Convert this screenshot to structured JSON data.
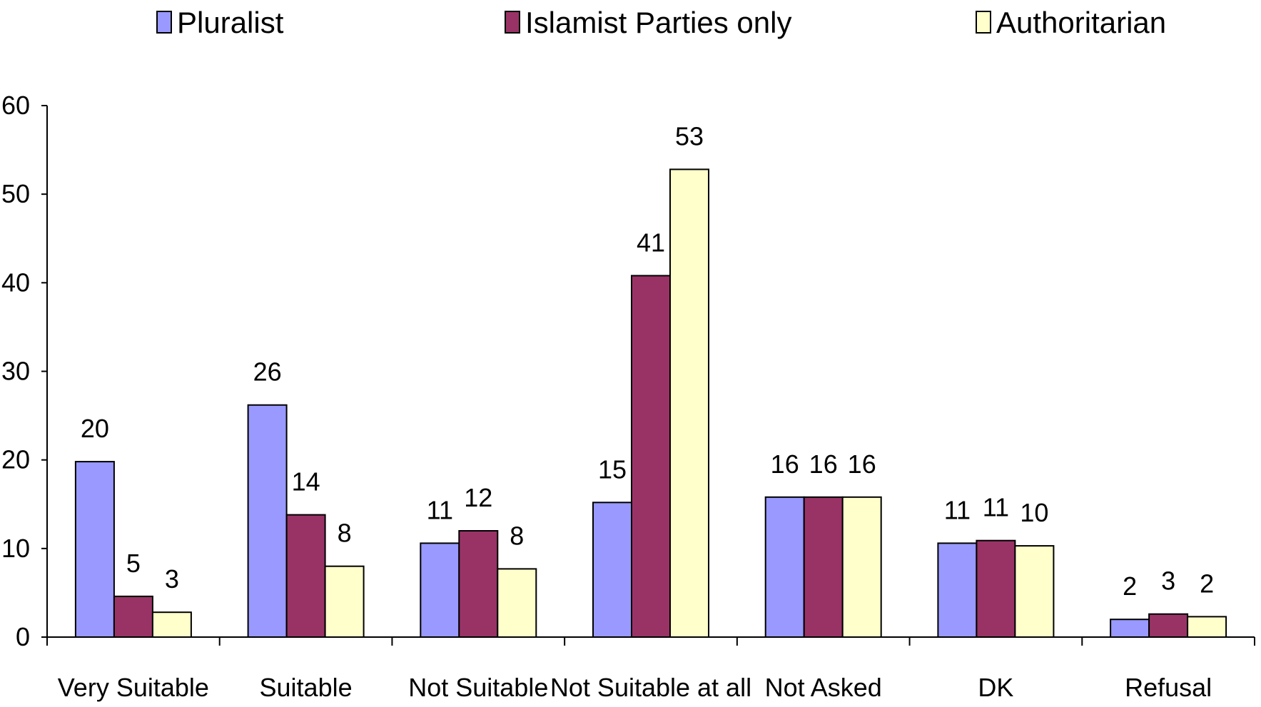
{
  "chart_data": {
    "type": "bar",
    "title": "",
    "xlabel": "",
    "ylabel": "",
    "categories": [
      "Very Suitable",
      "Suitable",
      "Not Suitable",
      "Not Suitable at all",
      "Not Asked",
      "DK",
      "Refusal"
    ],
    "series": [
      {
        "name": "Pluralist",
        "color": "#9999ff",
        "values": [
          19.8,
          26.2,
          10.6,
          15.2,
          15.8,
          10.6,
          2.0
        ],
        "labels": [
          "20",
          "26",
          "11",
          "15",
          "16",
          "11",
          "2"
        ]
      },
      {
        "name": "Islamist Parties only",
        "color": "#993366",
        "values": [
          4.6,
          13.8,
          12.0,
          40.8,
          15.8,
          10.9,
          2.6
        ],
        "labels": [
          "5",
          "14",
          "12",
          "41",
          "16",
          "11",
          "3"
        ]
      },
      {
        "name": "Authoritarian",
        "color": "#ffffcc",
        "values": [
          2.8,
          8.0,
          7.7,
          52.8,
          15.8,
          10.3,
          2.3
        ],
        "labels": [
          "3",
          "8",
          "8",
          "53",
          "16",
          "10",
          "2"
        ]
      }
    ],
    "ylim": [
      0,
      60
    ],
    "yticks": [
      0,
      10,
      20,
      30,
      40,
      50,
      60
    ],
    "grid": false,
    "legend_position": "top"
  }
}
